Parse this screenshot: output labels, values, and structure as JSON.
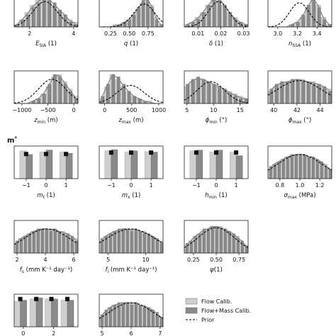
{
  "chart_data": {
    "type": "bar",
    "figure_label": "m*",
    "legend": {
      "placement": "bottom-right",
      "entries": [
        {
          "label": "Flow Calib.",
          "kind": "bar",
          "color": "#cfcfcf"
        },
        {
          "label": "Flow+Mass Calib.",
          "kind": "bar",
          "color": "#8a8a8a"
        },
        {
          "label": "Prior",
          "kind": "dashed-line",
          "color": "#000000"
        }
      ]
    },
    "colors": {
      "flow": "#cfcfcf",
      "flowmass": "#8a8a8a",
      "marker": "#111111",
      "smooth": "#888888"
    },
    "panels": [
      {
        "id": "e-sia",
        "kind": "hist",
        "xlabel": "E",
        "xlabel_sub": "SIA",
        "xlabel_tail": " (1)",
        "xlim": [
          1.3,
          4.2
        ],
        "ticks": [
          {
            "v": 2,
            "t": "2"
          },
          {
            "v": 4,
            "t": "4"
          }
        ],
        "flow": [
          1,
          3,
          6,
          9,
          11,
          12,
          11,
          9,
          7,
          5,
          3,
          2
        ],
        "flowmass": [
          1,
          3,
          5,
          8,
          10,
          12,
          12,
          10,
          7,
          5,
          2,
          1
        ],
        "prior": {
          "mu": 2.7,
          "sigma": 0.55,
          "amp": 10.5
        }
      },
      {
        "id": "q",
        "kind": "hist",
        "xlabel": "q",
        "xlabel_tail": " (1)",
        "xlim": [
          0.1,
          0.95
        ],
        "ticks": [
          {
            "v": 0.25,
            "t": "0.25"
          },
          {
            "v": 0.5,
            "t": "0.50"
          },
          {
            "v": 0.75,
            "t": "0.75"
          }
        ],
        "flow": [
          0,
          0,
          0,
          1,
          1,
          2,
          3,
          5,
          7,
          10,
          12,
          9,
          4,
          1
        ],
        "flowmass": [
          0,
          0,
          0,
          0,
          1,
          2,
          3,
          5,
          8,
          11,
          12,
          8,
          3,
          1
        ],
        "prior": {
          "mu": 0.7,
          "sigma": 0.14,
          "amp": 9.5
        }
      },
      {
        "id": "delta",
        "kind": "hist",
        "xlabel": "δ",
        "xlabel_tail": " (1)",
        "xlim": [
          0.004,
          0.032
        ],
        "ticks": [
          {
            "v": 0.01,
            "t": "0.01"
          },
          {
            "v": 0.02,
            "t": "0.02"
          },
          {
            "v": 0.03,
            "t": "0.03"
          }
        ],
        "flow": [
          1,
          2,
          4,
          6,
          9,
          12,
          12,
          9,
          6,
          4,
          2,
          1
        ],
        "flowmass": [
          1,
          2,
          3,
          6,
          9,
          11,
          12,
          9,
          6,
          3,
          2,
          1
        ],
        "prior": {
          "mu": 0.019,
          "sigma": 0.0045,
          "amp": 10.5
        }
      },
      {
        "id": "n-ssa",
        "kind": "hist",
        "xlabel": "n",
        "xlabel_sub": "SSA",
        "xlabel_tail": " (1)",
        "xlim": [
          2.9,
          3.55
        ],
        "ticks": [
          {
            "v": 3.0,
            "t": "3.0"
          },
          {
            "v": 3.2,
            "t": "3.2"
          },
          {
            "v": 3.4,
            "t": "3.4"
          }
        ],
        "flow": [
          0,
          0,
          0,
          0,
          1,
          2,
          4,
          8,
          12,
          9,
          4,
          1
        ],
        "flowmass": [
          0,
          0,
          0,
          0,
          1,
          2,
          5,
          9,
          12,
          8,
          3,
          1
        ],
        "prior": {
          "mu": 3.22,
          "sigma": 0.1,
          "amp": 10
        }
      },
      {
        "id": "z-min",
        "kind": "hist",
        "xlabel": "z",
        "xlabel_sub": "min",
        "xlabel_tail": " (m)",
        "xlim": [
          -1150,
          80
        ],
        "ticks": [
          {
            "v": -1000,
            "t": "−1000"
          },
          {
            "v": -500,
            "t": "−500"
          },
          {
            "v": 0,
            "t": "0"
          }
        ],
        "flow": [
          0,
          0,
          0,
          1,
          2,
          4,
          7,
          11,
          12,
          9,
          6,
          3
        ],
        "flowmass": [
          0,
          0,
          0,
          1,
          2,
          4,
          8,
          12,
          11,
          8,
          5,
          2
        ],
        "prior": {
          "mu": -420,
          "sigma": 260,
          "amp": 10
        }
      },
      {
        "id": "z-max",
        "kind": "hist",
        "xlabel": "z",
        "xlabel_sub": "max",
        "xlabel_tail": " (m)",
        "xlim": [
          -100,
          1080
        ],
        "ticks": [
          {
            "v": 0,
            "t": "0"
          },
          {
            "v": 500,
            "t": "500"
          },
          {
            "v": 1000,
            "t": "1000"
          }
        ],
        "flow": [
          2,
          7,
          12,
          10,
          7,
          5,
          3,
          2,
          1,
          1,
          0,
          0
        ],
        "flowmass": [
          3,
          8,
          12,
          11,
          8,
          5,
          3,
          2,
          1,
          0,
          0,
          0
        ],
        "prior": {
          "mu": 480,
          "sigma": 250,
          "amp": 7.5
        }
      },
      {
        "id": "phi-min",
        "kind": "hist",
        "xlabel": "ϕ",
        "xlabel_sub": "min",
        "xlabel_tail": " (°)",
        "xlim": [
          4.5,
          16.5
        ],
        "ticks": [
          {
            "v": 5,
            "t": "5"
          },
          {
            "v": 10,
            "t": "10"
          },
          {
            "v": 15,
            "t": "15"
          }
        ],
        "flow": [
          7,
          9,
          10,
          10,
          9,
          8,
          7,
          6,
          5,
          4,
          3,
          2
        ],
        "flowmass": [
          8,
          10,
          11,
          10,
          9,
          8,
          7,
          6,
          4,
          3,
          2,
          2
        ],
        "prior": {
          "mu": 9.5,
          "sigma": 2.6,
          "amp": 9
        }
      },
      {
        "id": "phi-max",
        "kind": "hist",
        "xlabel": "ϕ",
        "xlabel_sub": "max",
        "xlabel_tail": " (°)",
        "xlim": [
          39.5,
          45
        ],
        "ticks": [
          {
            "v": 40,
            "t": "40"
          },
          {
            "v": 42,
            "t": "42"
          },
          {
            "v": 44,
            "t": "44"
          }
        ],
        "flow": [
          5,
          7,
          8,
          9,
          9,
          10,
          10,
          9,
          9,
          8,
          7,
          6
        ],
        "flowmass": [
          6,
          8,
          9,
          9,
          10,
          10,
          9,
          9,
          8,
          8,
          7,
          5
        ],
        "prior": {
          "mu": 42.2,
          "sigma": 1.9,
          "amp": 9.5
        }
      },
      {
        "id": "m-t",
        "kind": "cat",
        "xlabel": "m",
        "xlabel_sub": "t",
        "xlabel_tail": " (1)",
        "cats": [
          "−1",
          "0",
          "1"
        ],
        "flow": [
          11.5,
          11.0,
          11.0
        ],
        "flowmass": [
          10.0,
          11.8,
          10.5
        ],
        "prior_marker": [
          10.2,
          10.2,
          10.2
        ]
      },
      {
        "id": "m-x",
        "kind": "cat",
        "xlabel": "m",
        "xlabel_sub": "x",
        "xlabel_tail": " (1)",
        "cats": [
          "−1",
          "0",
          "1"
        ],
        "flow": [
          11.5,
          11.0,
          11.2
        ],
        "flowmass": [
          12.0,
          11.5,
          11.0
        ],
        "prior_marker": [
          10.8,
          10.8,
          10.8
        ]
      },
      {
        "id": "h-min",
        "kind": "cat",
        "xlabel": "h",
        "xlabel_sub": "min",
        "xlabel_tail": " (1)",
        "cats": [
          "−1",
          "0",
          "1"
        ],
        "flow": [
          11.5,
          11.0,
          11.0
        ],
        "flowmass": [
          11.8,
          11.8,
          9.5
        ],
        "prior_marker": [
          10.8,
          10.8,
          10.8
        ]
      },
      {
        "id": "sigma-max",
        "kind": "hist",
        "xlabel": "σ",
        "xlabel_sub": "max",
        "xlabel_tail": " (MPa)",
        "xlim": [
          0.68,
          1.32
        ],
        "ticks": [
          {
            "v": 0.8,
            "t": "0.8"
          },
          {
            "v": 1.0,
            "t": "1.0"
          },
          {
            "v": 1.2,
            "t": "1.2"
          }
        ],
        "flow": [
          4,
          6,
          7,
          8,
          9,
          9,
          10,
          10,
          10,
          9,
          9,
          8,
          7,
          6,
          4
        ],
        "flowmass": [
          5,
          6,
          7,
          8,
          9,
          10,
          10,
          10,
          10,
          9,
          9,
          8,
          7,
          5,
          4
        ],
        "prior": {
          "mu": 1.0,
          "sigma": 0.22,
          "amp": 10
        }
      },
      {
        "id": "f-s",
        "kind": "hist",
        "xlabel": "f",
        "xlabel_sub": "s",
        "xlabel_tail": " (mm K⁻¹ day⁻¹)",
        "xlim": [
          1.8,
          6.3
        ],
        "ticks": [
          {
            "v": 2,
            "t": "2"
          },
          {
            "v": 4,
            "t": "4"
          },
          {
            "v": 6,
            "t": "6"
          }
        ],
        "flow": [
          4,
          6,
          7,
          8,
          9,
          9,
          10,
          10,
          10,
          10,
          9,
          9,
          8,
          7,
          6
        ],
        "flowmass": [
          5,
          6,
          7,
          8,
          9,
          10,
          10,
          10,
          9,
          10,
          9,
          8,
          8,
          7,
          5
        ],
        "prior": {
          "mu": 4.1,
          "sigma": 1.6,
          "amp": 10
        }
      },
      {
        "id": "f-i",
        "kind": "hist",
        "xlabel": "f",
        "xlabel_sub": "i",
        "xlabel_tail": " (mm K⁻¹ day⁻¹)",
        "xlim": [
          3.8,
          12.3
        ],
        "ticks": [
          {
            "v": 5,
            "t": "5"
          },
          {
            "v": 10,
            "t": "10"
          }
        ],
        "flow": [
          5,
          7,
          8,
          9,
          9,
          10,
          10,
          10,
          10,
          9,
          9,
          8,
          7,
          6,
          5
        ],
        "flowmass": [
          6,
          7,
          8,
          9,
          10,
          10,
          10,
          9,
          10,
          9,
          8,
          8,
          7,
          6,
          4
        ],
        "prior": {
          "mu": 8,
          "sigma": 3.2,
          "amp": 10
        }
      },
      {
        "id": "psi",
        "kind": "hist",
        "xlabel": "ψ",
        "xlabel_tail": "(1)",
        "xlim": [
          0.15,
          0.85
        ],
        "ticks": [
          {
            "v": 0.25,
            "t": "0.25"
          },
          {
            "v": 0.5,
            "t": "0.50"
          },
          {
            "v": 0.75,
            "t": "0.75"
          }
        ],
        "flow": [
          3,
          5,
          7,
          8,
          9,
          10,
          11,
          11,
          11,
          10,
          9,
          8,
          7,
          5,
          3
        ],
        "flowmass": [
          4,
          5,
          7,
          8,
          10,
          10,
          11,
          11,
          10,
          10,
          9,
          8,
          6,
          5,
          3
        ],
        "prior": {
          "mu": 0.5,
          "sigma": 0.2,
          "amp": 10.5
        }
      },
      {
        "id": "bottom-cat",
        "kind": "cat",
        "xlabel": "",
        "cat_positions": [
          -0.2,
          0.85,
          1.85,
          2.9
        ],
        "xlim": [
          -0.6,
          3.6
        ],
        "ticks": [
          {
            "v": 0,
            "t": "0"
          },
          {
            "v": 2,
            "t": "2"
          }
        ],
        "flow": [
          10.5,
          11.5,
          11.5,
          11.0
        ],
        "flowmass": [
          11.0,
          12.0,
          11.5,
          11.0
        ],
        "prior_marker": [
          11.5,
          11.5,
          11.5,
          11.5
        ]
      },
      {
        "id": "bottom-hist",
        "kind": "hist",
        "xlabel": "",
        "xlim": [
          4.9,
          7.1
        ],
        "ticks": [
          {
            "v": 5,
            "t": "5"
          },
          {
            "v": 6,
            "t": "6"
          },
          {
            "v": 7,
            "t": "7"
          }
        ],
        "flow": [
          4,
          6,
          8,
          9,
          9,
          10,
          10,
          10,
          10,
          9,
          9,
          8,
          7,
          5,
          4
        ],
        "flowmass": [
          5,
          7,
          8,
          9,
          10,
          10,
          10,
          9,
          10,
          9,
          8,
          8,
          7,
          6,
          4
        ],
        "prior": {
          "mu": 6,
          "sigma": 0.75,
          "amp": 10
        }
      }
    ]
  }
}
